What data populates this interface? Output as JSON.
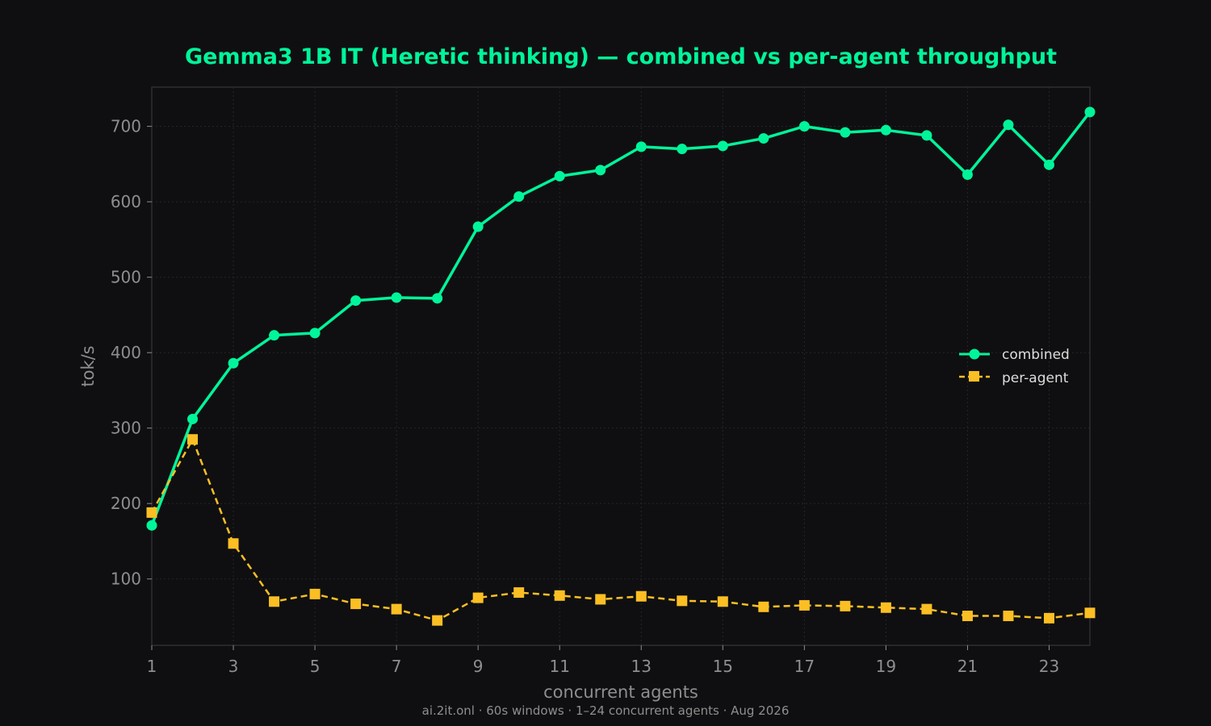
{
  "chart_data": {
    "type": "line",
    "title": "Gemma3 1B IT (Heretic thinking) — combined vs per-agent throughput",
    "xlabel": "concurrent agents",
    "ylabel": "tok/s",
    "footer": "ai.2it.onl · 60s windows · 1–24 concurrent agents · Aug 2026",
    "x": [
      1,
      2,
      3,
      4,
      5,
      6,
      7,
      8,
      9,
      10,
      11,
      12,
      13,
      14,
      15,
      16,
      17,
      18,
      19,
      20,
      21,
      22,
      23,
      24
    ],
    "xlim": [
      1,
      24
    ],
    "ylim": [
      12,
      752
    ],
    "xticks": [
      1,
      3,
      5,
      7,
      9,
      11,
      13,
      15,
      17,
      19,
      21,
      23
    ],
    "yticks": [
      100,
      200,
      300,
      400,
      500,
      600,
      700
    ],
    "grid": true,
    "legend_position": "right",
    "series": [
      {
        "name": "combined",
        "color": "#00f59a",
        "marker": "circle",
        "linestyle": "solid",
        "values": [
          171,
          312,
          386,
          423,
          426,
          469,
          473,
          472,
          567,
          607,
          634,
          642,
          673,
          670,
          674,
          684,
          700,
          692,
          695,
          688,
          636,
          702,
          649,
          719
        ]
      },
      {
        "name": "per-agent",
        "color": "#fbbf24",
        "marker": "square",
        "linestyle": "dashed",
        "values": [
          188,
          285,
          147,
          70,
          80,
          67,
          60,
          45,
          75,
          82,
          78,
          73,
          77,
          71,
          70,
          63,
          65,
          64,
          62,
          60,
          51,
          51,
          48,
          55
        ]
      }
    ]
  }
}
